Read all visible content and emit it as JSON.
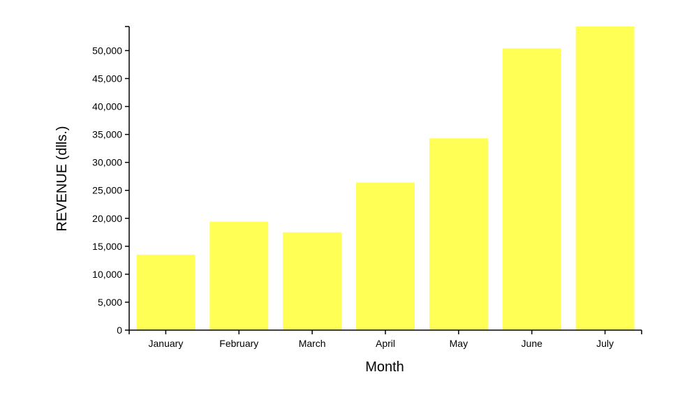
{
  "chart_data": {
    "type": "bar",
    "title": "",
    "xlabel": "Month",
    "ylabel": "REVENUE (dlls.)",
    "categories": [
      "January",
      "February",
      "March",
      "April",
      "May",
      "June",
      "July"
    ],
    "values": [
      13500,
      19400,
      17500,
      26400,
      34300,
      50400,
      54300
    ],
    "ylim": [
      0,
      54300
    ],
    "yticks": [
      0,
      5000,
      10000,
      15000,
      20000,
      25000,
      30000,
      35000,
      40000,
      45000,
      50000
    ],
    "ytick_labels": [
      "0",
      "5,000",
      "10,000",
      "15,000",
      "20,000",
      "25,000",
      "30,000",
      "35,000",
      "40,000",
      "45,000",
      "50,000"
    ],
    "bar_color": "#ffff55",
    "grid": false,
    "legend": "none"
  }
}
